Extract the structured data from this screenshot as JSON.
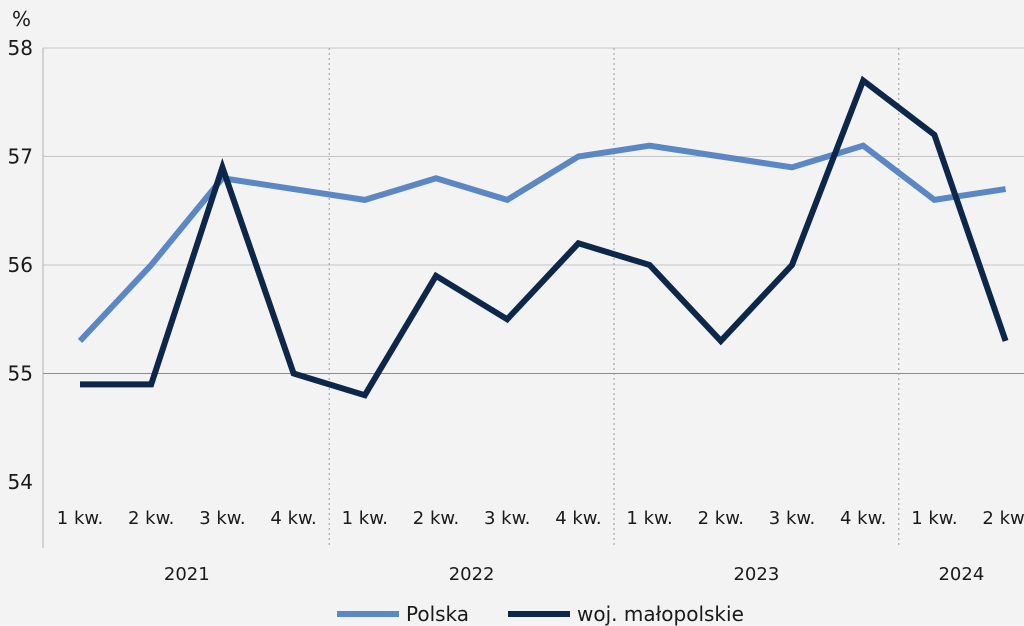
{
  "chart_data": {
    "type": "line",
    "unit": "%",
    "ylim": [
      54,
      58
    ],
    "yticks": [
      54,
      55,
      56,
      57,
      58
    ],
    "grid": true,
    "legend_position": "bottom",
    "categories": [
      "1 kw.",
      "2 kw.",
      "3 kw.",
      "4 kw.",
      "1 kw.",
      "2 kw.",
      "3 kw.",
      "4 kw.",
      "1 kw.",
      "2 kw.",
      "3 kw.",
      "4 kw.",
      "1 kw.",
      "2 kw."
    ],
    "years": [
      {
        "label": "2021",
        "count": 4
      },
      {
        "label": "2022",
        "count": 4
      },
      {
        "label": "2023",
        "count": 4
      },
      {
        "label": "2024",
        "count": 2
      }
    ],
    "series": [
      {
        "name": "Polska",
        "color": "#5b87c4",
        "values": [
          55.3,
          56.0,
          56.8,
          56.7,
          56.6,
          56.8,
          56.6,
          57.0,
          57.1,
          57.0,
          56.9,
          57.1,
          56.6,
          56.7
        ]
      },
      {
        "name": "woj. małopolskie",
        "color": "#0c2749",
        "values": [
          54.9,
          54.9,
          56.9,
          55.0,
          54.8,
          55.9,
          55.5,
          56.2,
          56.0,
          55.3,
          56.0,
          57.7,
          57.2,
          55.3
        ]
      }
    ]
  }
}
